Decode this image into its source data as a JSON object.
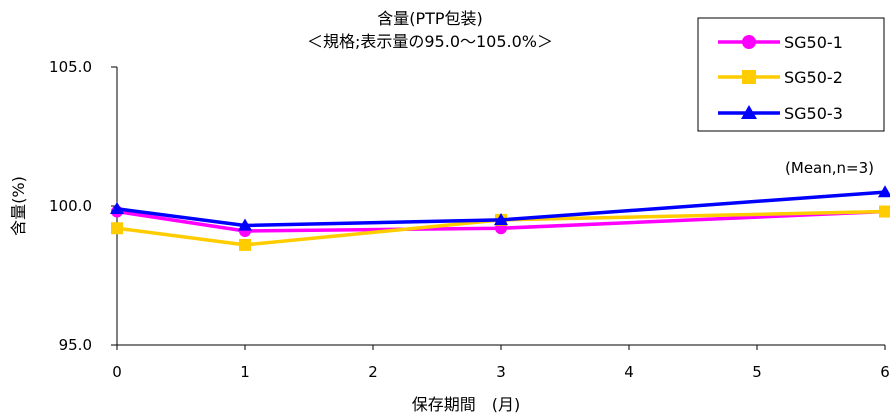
{
  "chart_data": {
    "type": "line",
    "title": "含量(PTP包装)",
    "subtitle": "＜規格;表示量の95.0～105.0%＞",
    "xlabel": "保存期間　(月)",
    "ylabel": "含量(%)",
    "annotation": "(Mean,n=3)",
    "x_ticks": [
      "0",
      "1",
      "2",
      "3",
      "4",
      "5",
      "6"
    ],
    "y_ticks": [
      "95.0",
      "100.0",
      "105.0"
    ],
    "xlim": [
      0,
      6
    ],
    "ylim": [
      95.0,
      105.0
    ],
    "grid": false,
    "legend_position": "top-right",
    "x": [
      0,
      1,
      3,
      6
    ],
    "series": [
      {
        "name": "SG50-1",
        "values": [
          99.8,
          99.1,
          99.2,
          99.8
        ],
        "color": "#ff00ff",
        "marker": "circle"
      },
      {
        "name": "SG50-2",
        "values": [
          99.2,
          98.6,
          99.5,
          99.8
        ],
        "color": "#ffcc00",
        "marker": "square"
      },
      {
        "name": "SG50-3",
        "values": [
          99.9,
          99.3,
          99.5,
          100.5
        ],
        "color": "#0000ff",
        "marker": "triangle"
      }
    ]
  }
}
